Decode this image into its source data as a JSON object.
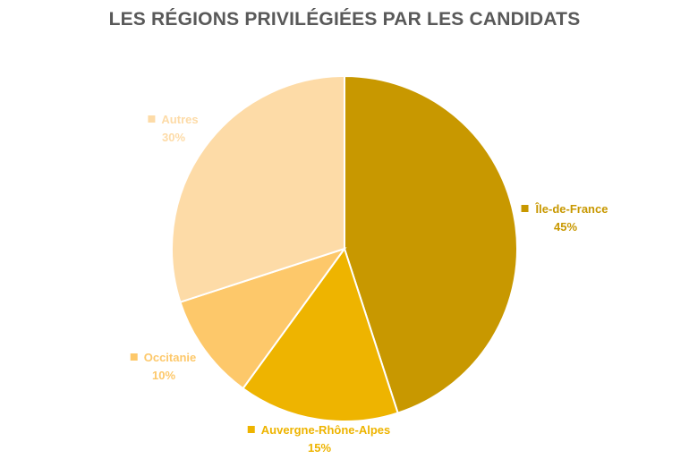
{
  "chart_data": {
    "type": "pie",
    "title": "LES RÉGIONS PRIVILÉGIÉES PAR LES CANDIDATS",
    "slices": [
      {
        "name": "Île-de-France",
        "value": 45,
        "value_label": "45%",
        "color": "#C89800"
      },
      {
        "name": "Auvergne-Rhône-Alpes",
        "value": 15,
        "value_label": "15%",
        "color": "#EEB400"
      },
      {
        "name": "Occitanie",
        "value": 10,
        "value_label": "10%",
        "color": "#FDC86A"
      },
      {
        "name": "Autres",
        "value": 30,
        "value_label": "30%",
        "color": "#FDDBA7"
      }
    ],
    "start_angle_deg": 0,
    "direction": "clockwise",
    "legend": "data labels beside slices"
  }
}
